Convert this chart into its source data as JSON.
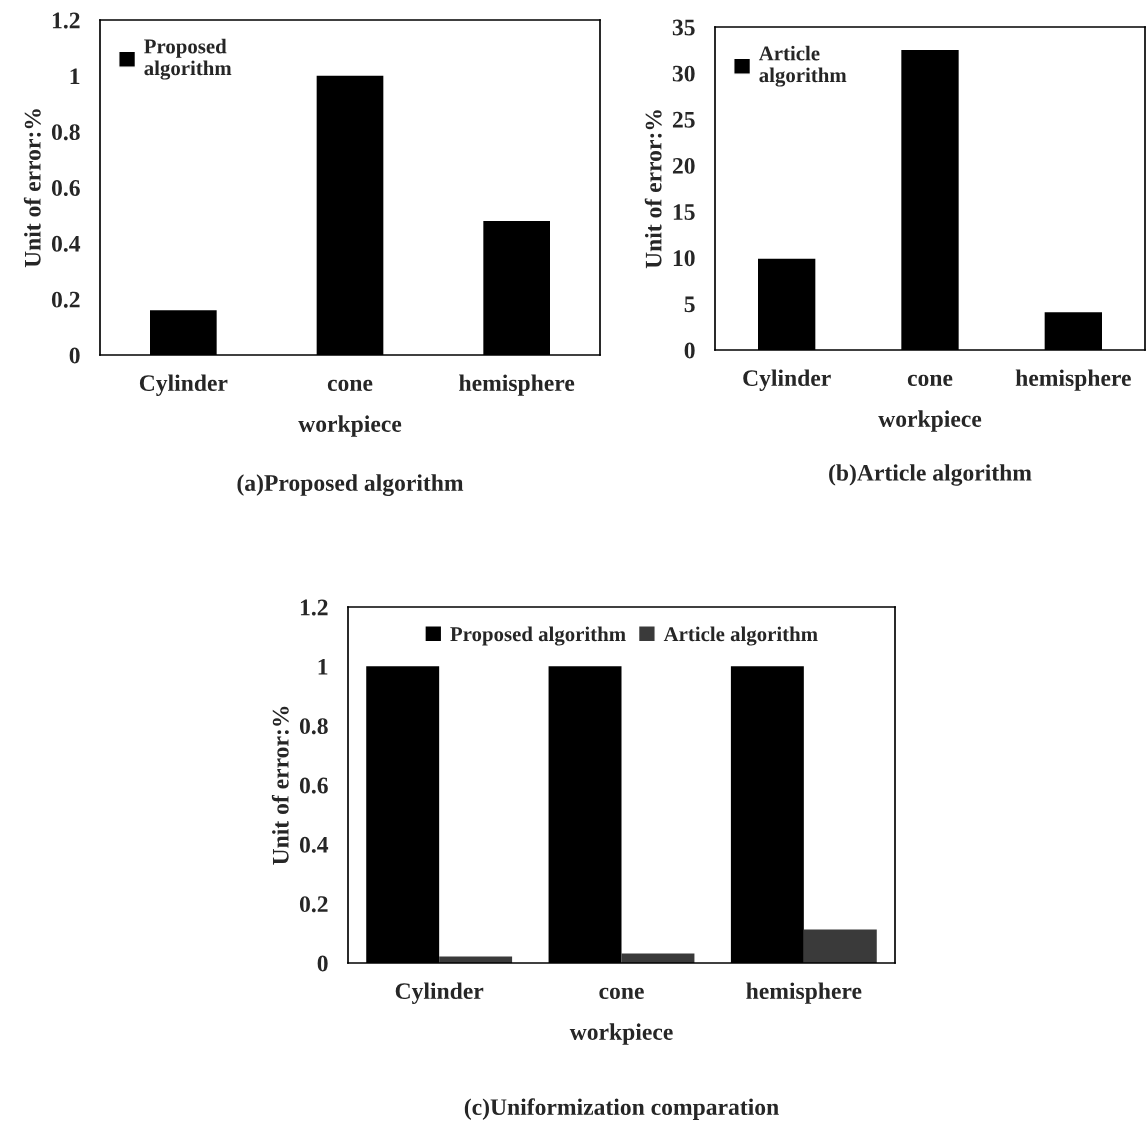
{
  "chart_data": [
    {
      "type": "bar",
      "title": "(a)Proposed algorithm",
      "xlabel": "workpiece",
      "ylabel": "Unit of error:%",
      "categories": [
        "Cylinder",
        "cone",
        "hemisphere"
      ],
      "series": [
        {
          "name": "Proposed\nalgorithm",
          "color": "#000000",
          "values": [
            0.16,
            1.0,
            0.48
          ]
        }
      ],
      "ylim": [
        0,
        1.2
      ],
      "yticks": [
        0,
        0.2,
        0.4,
        0.6,
        0.8,
        1,
        1.2
      ],
      "legend": "top left",
      "grid": false
    },
    {
      "type": "bar",
      "title": "(b)Article algorithm",
      "xlabel": "workpiece",
      "ylabel": "Unit of error:%",
      "categories": [
        "Cylinder",
        "cone",
        "hemisphere"
      ],
      "series": [
        {
          "name": "Article\nalgorithm",
          "color": "#000000",
          "values": [
            9.9,
            32.5,
            4.1
          ]
        }
      ],
      "ylim": [
        0,
        35
      ],
      "yticks": [
        0,
        5,
        10,
        15,
        20,
        25,
        30,
        35
      ],
      "legend": "top left",
      "grid": false
    },
    {
      "type": "bar",
      "title": "(c)Uniformization comparation",
      "xlabel": "workpiece",
      "ylabel": "Unit of error:%",
      "categories": [
        "Cylinder",
        "cone",
        "hemisphere"
      ],
      "series": [
        {
          "name": "Proposed algorithm",
          "color": "#000000",
          "values": [
            1,
            1,
            1
          ]
        },
        {
          "name": "Article algorithm",
          "color": "#3a3a3a",
          "values": [
            0.022,
            0.032,
            0.113
          ]
        }
      ],
      "ylim": [
        0,
        1.2
      ],
      "yticks": [
        0,
        0.2,
        0.4,
        0.6,
        0.8,
        1,
        1.2
      ],
      "legend": "top",
      "grid": false
    }
  ]
}
